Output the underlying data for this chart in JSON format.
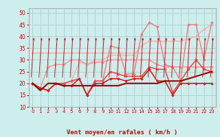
{
  "title": "",
  "xlabel": "Vent moyen/en rafales ( km/h )",
  "background_color": "#ceeeed",
  "grid_color": "#aad4d4",
  "xlim": [
    -0.5,
    23.5
  ],
  "ylim": [
    10,
    52
  ],
  "yticks": [
    10,
    15,
    20,
    25,
    30,
    35,
    40,
    45,
    50
  ],
  "xticks": [
    0,
    1,
    2,
    3,
    4,
    5,
    6,
    7,
    8,
    9,
    10,
    11,
    12,
    13,
    14,
    15,
    16,
    17,
    18,
    19,
    20,
    21,
    22,
    23
  ],
  "series": [
    {
      "data": [
        33,
        33,
        33,
        33,
        33,
        33,
        33,
        33,
        33,
        33,
        33,
        33,
        33,
        33,
        33,
        33,
        33,
        33,
        33,
        33,
        33,
        33,
        33,
        33
      ],
      "color": "#f5a8a8",
      "lw": 1.0,
      "marker": "D",
      "ms": 2.0,
      "zorder": 3
    },
    {
      "data": [
        20,
        18,
        27,
        28,
        28,
        30,
        30,
        28,
        29,
        29,
        30,
        30,
        30,
        30,
        30,
        30,
        28,
        27,
        27,
        27,
        27,
        27,
        27,
        27
      ],
      "color": "#f09090",
      "lw": 1.0,
      "marker": "D",
      "ms": 2.0,
      "zorder": 3
    },
    {
      "data": [
        20,
        18,
        17,
        20,
        20,
        21,
        29,
        28,
        30,
        30,
        32,
        32,
        32,
        32,
        36,
        38,
        38,
        38,
        38,
        38,
        39,
        40,
        43,
        45
      ],
      "color": "#f0b0b0",
      "lw": 1.0,
      "marker": "D",
      "ms": 2.0,
      "zorder": 3
    },
    {
      "data": [
        20,
        18,
        17,
        20,
        20,
        21,
        22,
        15,
        21,
        21,
        36,
        35,
        24,
        24,
        41,
        46,
        44,
        28,
        27,
        21,
        45,
        45,
        30,
        46
      ],
      "color": "#f07878",
      "lw": 1.0,
      "marker": "D",
      "ms": 2.0,
      "zorder": 4
    },
    {
      "data": [
        20,
        18,
        17,
        20,
        20,
        21,
        22,
        15,
        21,
        21,
        25,
        24,
        23,
        23,
        23,
        27,
        26,
        26,
        16,
        21,
        26,
        30,
        26,
        25
      ],
      "color": "#e05050",
      "lw": 1.2,
      "marker": "D",
      "ms": 2.0,
      "zorder": 5
    },
    {
      "data": [
        20,
        18,
        17,
        20,
        19,
        19,
        22,
        15,
        20,
        20,
        22,
        22,
        21,
        22,
        22,
        26,
        21,
        21,
        15,
        20,
        20,
        20,
        20,
        20
      ],
      "color": "#cc2020",
      "lw": 1.2,
      "marker": "D",
      "ms": 2.0,
      "zorder": 6
    },
    {
      "data": [
        20,
        17,
        20,
        20,
        19,
        19,
        19,
        19,
        19,
        19,
        19,
        19,
        20,
        20,
        20,
        20,
        20,
        21,
        21,
        21,
        22,
        23,
        24,
        25
      ],
      "color": "#990000",
      "lw": 1.5,
      "marker": null,
      "ms": 0,
      "zorder": 7
    }
  ]
}
